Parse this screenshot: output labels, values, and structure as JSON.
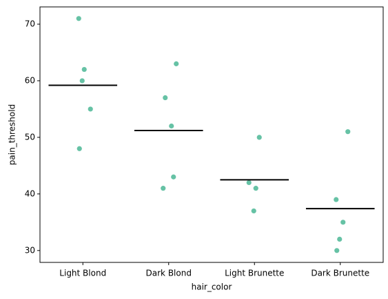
{
  "chart_data": {
    "type": "strip",
    "x_label": "hair_color",
    "y_label": "pain_threshold",
    "categories": [
      "Light Blond",
      "Dark Blond",
      "Light Brunette",
      "Dark Brunette"
    ],
    "values": [
      [
        62,
        60,
        71,
        55,
        48
      ],
      [
        63,
        57,
        52,
        41,
        43
      ],
      [
        42,
        50,
        41,
        37
      ],
      [
        32,
        39,
        51,
        30,
        35
      ]
    ],
    "means": [
      59.2,
      51.2,
      42.5,
      37.4
    ],
    "color": "#66c2a5",
    "mean_color": "#000000",
    "ylim": [
      27.9,
      73.05
    ],
    "yticks": [
      30,
      40,
      50,
      60,
      70
    ]
  }
}
